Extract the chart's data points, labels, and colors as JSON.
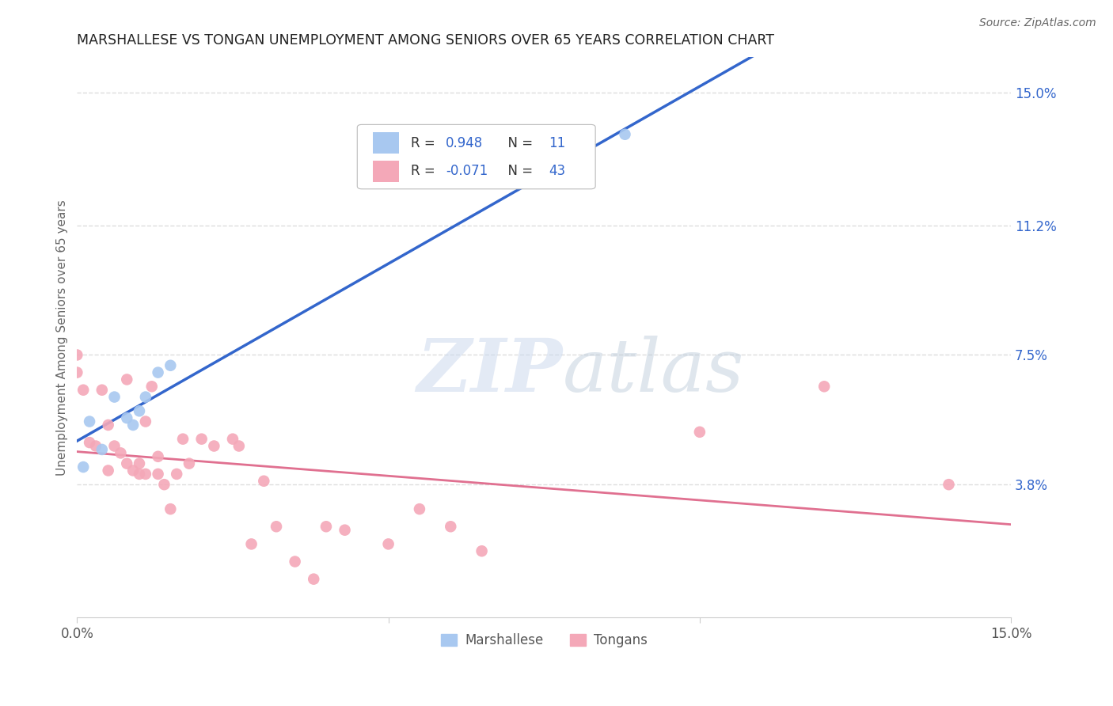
{
  "title": "MARSHALLESE VS TONGAN UNEMPLOYMENT AMONG SENIORS OVER 65 YEARS CORRELATION CHART",
  "source": "Source: ZipAtlas.com",
  "ylabel": "Unemployment Among Seniors over 65 years",
  "xlim": [
    0.0,
    0.15
  ],
  "ylim": [
    0.0,
    0.16
  ],
  "right_yticks": [
    0.038,
    0.075,
    0.112,
    0.15
  ],
  "right_yticklabels": [
    "3.8%",
    "7.5%",
    "11.2%",
    "15.0%"
  ],
  "marshallese_R": 0.948,
  "marshallese_N": 11,
  "tongan_R": -0.071,
  "tongan_N": 43,
  "marshallese_color": "#a8c8f0",
  "tongan_color": "#f4a8b8",
  "marshallese_line_color": "#3366cc",
  "tongan_line_color": "#e07090",
  "watermark_zip": "ZIP",
  "watermark_atlas": "atlas",
  "marshallese_x": [
    0.001,
    0.002,
    0.004,
    0.006,
    0.008,
    0.009,
    0.01,
    0.011,
    0.013,
    0.015,
    0.088
  ],
  "marshallese_y": [
    0.043,
    0.056,
    0.048,
    0.063,
    0.057,
    0.055,
    0.059,
    0.063,
    0.07,
    0.072,
    0.138
  ],
  "tongan_x": [
    0.0,
    0.0,
    0.001,
    0.002,
    0.003,
    0.004,
    0.005,
    0.005,
    0.006,
    0.007,
    0.008,
    0.008,
    0.009,
    0.01,
    0.01,
    0.011,
    0.011,
    0.012,
    0.013,
    0.013,
    0.014,
    0.015,
    0.016,
    0.017,
    0.018,
    0.02,
    0.022,
    0.025,
    0.026,
    0.028,
    0.03,
    0.032,
    0.035,
    0.038,
    0.04,
    0.043,
    0.05,
    0.055,
    0.06,
    0.065,
    0.1,
    0.12,
    0.14
  ],
  "tongan_y": [
    0.075,
    0.07,
    0.065,
    0.05,
    0.049,
    0.065,
    0.055,
    0.042,
    0.049,
    0.047,
    0.068,
    0.044,
    0.042,
    0.044,
    0.041,
    0.056,
    0.041,
    0.066,
    0.046,
    0.041,
    0.038,
    0.031,
    0.041,
    0.051,
    0.044,
    0.051,
    0.049,
    0.051,
    0.049,
    0.021,
    0.039,
    0.026,
    0.016,
    0.011,
    0.026,
    0.025,
    0.021,
    0.031,
    0.026,
    0.019,
    0.053,
    0.066,
    0.038
  ],
  "background_color": "#ffffff",
  "grid_color": "#dddddd"
}
